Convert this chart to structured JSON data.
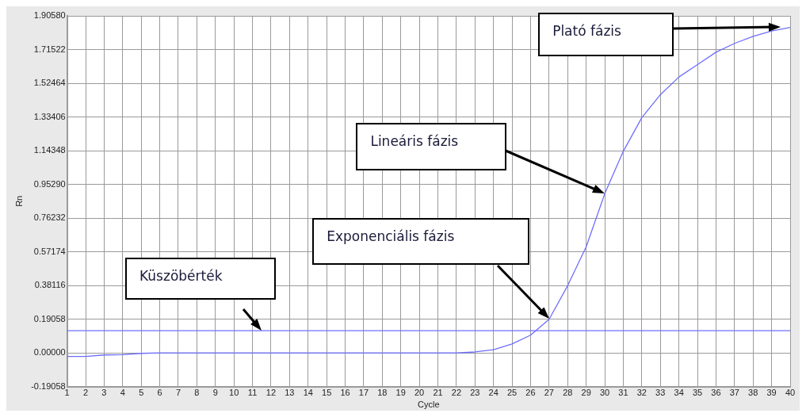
{
  "chart_data": {
    "type": "line",
    "xlabel": "Cycle",
    "ylabel": "Rn",
    "x": [
      1,
      2,
      3,
      4,
      5,
      6,
      7,
      8,
      9,
      10,
      11,
      12,
      13,
      14,
      15,
      16,
      17,
      18,
      19,
      20,
      21,
      22,
      23,
      24,
      25,
      26,
      27,
      28,
      29,
      30,
      31,
      32,
      33,
      34,
      35,
      36,
      37,
      38,
      39,
      40
    ],
    "series": [
      {
        "color": "#6e6eff",
        "values": [
          -0.02,
          -0.02,
          -0.012,
          -0.01,
          -0.003,
          0,
          0,
          0,
          0,
          0,
          0,
          0,
          0,
          0,
          0,
          0,
          0,
          0,
          0,
          0,
          0,
          0,
          0.005,
          0.018,
          0.05,
          0.1,
          0.19,
          0.38,
          0.6,
          0.9,
          1.14,
          1.33,
          1.46,
          1.56,
          1.63,
          1.7,
          1.75,
          1.79,
          1.82,
          1.84
        ]
      }
    ],
    "xlim": [
      1,
      40
    ],
    "xticks": [
      1,
      2,
      3,
      4,
      5,
      6,
      7,
      8,
      9,
      10,
      11,
      12,
      13,
      14,
      15,
      16,
      17,
      18,
      19,
      20,
      21,
      22,
      23,
      24,
      25,
      26,
      27,
      28,
      29,
      30,
      31,
      32,
      33,
      34,
      35,
      36,
      37,
      38,
      39,
      40
    ],
    "ylim": [
      -0.19058,
      1.9058
    ],
    "yticks": [
      {
        "value": -0.19058,
        "label": "-0.19058"
      },
      {
        "value": 0,
        "label": "0.00000"
      },
      {
        "value": 0.19058,
        "label": "0.19058"
      },
      {
        "value": 0.38116,
        "label": "0.38116"
      },
      {
        "value": 0.57174,
        "label": "0.57174"
      },
      {
        "value": 0.76232,
        "label": "0.76232"
      },
      {
        "value": 0.9529,
        "label": "0.95290"
      },
      {
        "value": 1.14348,
        "label": "1.14348"
      },
      {
        "value": 1.33406,
        "label": "1.33406"
      },
      {
        "value": 1.52464,
        "label": "1.52464"
      },
      {
        "value": 1.71522,
        "label": "1.71522"
      },
      {
        "value": 1.9058,
        "label": "1.90580"
      }
    ],
    "ref_lines": [
      {
        "axis": "y",
        "value": 0.125,
        "color": "#6e6eff"
      }
    ],
    "annotations": [
      "Küszöbérték",
      "Exponenciális fázis",
      "Lineáris fázis",
      "Plató fázis"
    ],
    "grid": true,
    "legend": false,
    "marker": "none",
    "line_style": "solid"
  }
}
